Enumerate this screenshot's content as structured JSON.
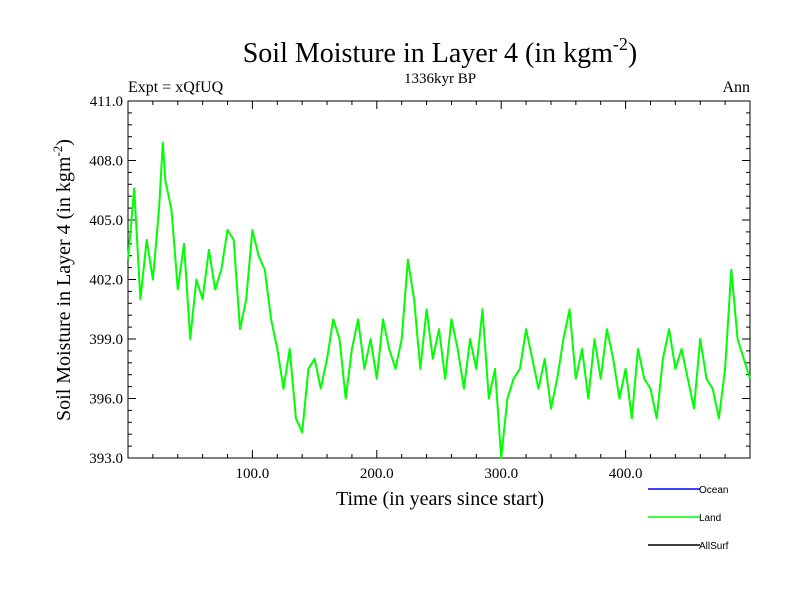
{
  "chart_data": {
    "type": "line",
    "title_main": "Soil Moisture in Layer 4 (in kgm",
    "title_sup": "-2",
    "title_close": ")",
    "subtitle_left": "Expt = xQfUQ",
    "subtitle_center": "1336kyr BP",
    "subtitle_right": "Ann",
    "xlabel": "Time (in years since start)",
    "ylabel_main": "Soil Moisture in Layer 4 (in kgm",
    "ylabel_sup": "-2",
    "ylabel_close": ")",
    "xlim": [
      0,
      500
    ],
    "ylim": [
      393.0,
      411.0
    ],
    "x_ticks": [
      100,
      200,
      300,
      400
    ],
    "x_tick_labels": [
      "100.0",
      "200.0",
      "300.0",
      "400.0"
    ],
    "y_ticks": [
      393,
      396,
      399,
      402,
      405,
      408,
      411
    ],
    "y_tick_labels": [
      "393.0",
      "396.0",
      "399.0",
      "402.0",
      "405.0",
      "408.0",
      "411.0"
    ],
    "legend": [
      {
        "name": "Ocean",
        "color": "#0000ff"
      },
      {
        "name": "Land",
        "color": "#00ff00"
      },
      {
        "name": "AllSurf",
        "color": "#000000"
      }
    ],
    "series": [
      {
        "name": "Land",
        "color": "#00ff00",
        "x": [
          0,
          5,
          10,
          15,
          20,
          25,
          28,
          30,
          35,
          40,
          45,
          50,
          55,
          60,
          65,
          70,
          75,
          80,
          85,
          90,
          95,
          100,
          105,
          110,
          115,
          120,
          125,
          130,
          135,
          140,
          145,
          150,
          155,
          160,
          165,
          170,
          175,
          180,
          185,
          190,
          195,
          200,
          205,
          210,
          215,
          220,
          225,
          230,
          235,
          240,
          245,
          250,
          255,
          260,
          265,
          270,
          275,
          280,
          285,
          290,
          295,
          300,
          305,
          310,
          315,
          320,
          325,
          330,
          335,
          340,
          345,
          350,
          355,
          360,
          365,
          370,
          375,
          380,
          385,
          390,
          395,
          400,
          405,
          410,
          415,
          420,
          425,
          430,
          435,
          440,
          445,
          450,
          455,
          460,
          465,
          470,
          475,
          480,
          485,
          490,
          495,
          500
        ],
        "y": [
          403.0,
          406.6,
          401.0,
          404.0,
          402.0,
          405.6,
          408.9,
          407.0,
          405.5,
          401.5,
          403.8,
          399.0,
          402.0,
          401.0,
          403.5,
          401.5,
          402.5,
          404.5,
          404.0,
          399.5,
          401.0,
          404.5,
          403.2,
          402.5,
          400.0,
          398.5,
          396.5,
          398.5,
          395.0,
          394.3,
          397.5,
          398.0,
          396.5,
          398.0,
          400.0,
          399.0,
          396.0,
          398.5,
          400.0,
          397.5,
          399.0,
          397.0,
          400.0,
          398.5,
          397.5,
          399.0,
          403.0,
          401.0,
          397.5,
          400.5,
          398.0,
          399.5,
          397.0,
          400.0,
          398.5,
          396.5,
          399.0,
          397.5,
          400.5,
          396.0,
          397.5,
          393.0,
          396.0,
          397.0,
          397.5,
          399.5,
          398.0,
          396.5,
          398.0,
          395.5,
          397.0,
          399.0,
          400.5,
          397.0,
          398.5,
          396.0,
          399.0,
          397.0,
          399.5,
          398.0,
          396.0,
          397.5,
          395.0,
          398.5,
          397.0,
          396.5,
          395.0,
          398.0,
          399.5,
          397.5,
          398.5,
          397.0,
          395.5,
          399.0,
          397.0,
          396.5,
          395.0,
          397.5,
          402.5,
          399.0,
          398.0,
          397.0
        ]
      },
      {
        "name": "Ocean",
        "color": "#0000ff",
        "x": [],
        "y": []
      },
      {
        "name": "AllSurf",
        "color": "#000000",
        "x": [],
        "y": []
      }
    ]
  }
}
